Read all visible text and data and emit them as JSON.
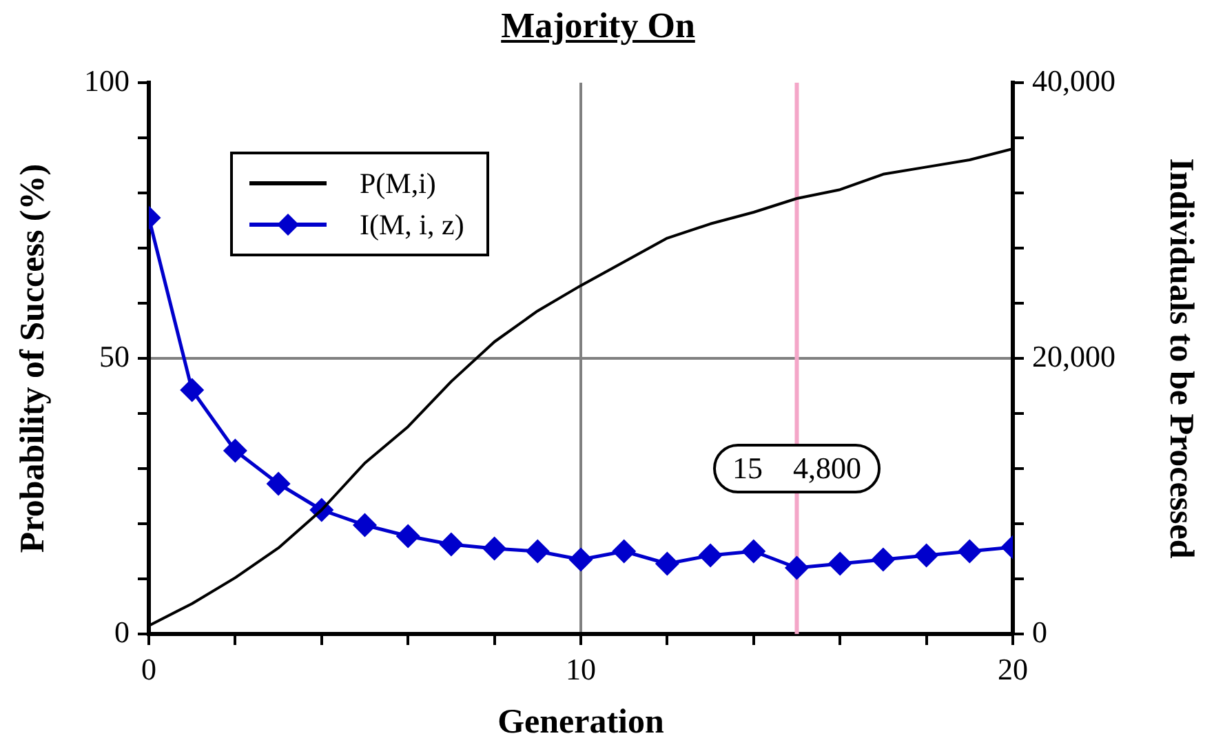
{
  "chart_data": {
    "type": "line",
    "title": "Majority On",
    "xlabel": "Generation",
    "ylabel": "Probability of Success (%)",
    "y2label": "Individuals to be Processed",
    "x": [
      0,
      1,
      2,
      3,
      4,
      5,
      6,
      7,
      8,
      9,
      10,
      11,
      12,
      13,
      14,
      15,
      16,
      17,
      18,
      19,
      20
    ],
    "series": [
      {
        "name": "P(M,i)",
        "color": "#000000",
        "marker": "none",
        "values": [
          1.5,
          5.5,
          10.2,
          15.6,
          22.5,
          31,
          37.6,
          45.8,
          53,
          58.6,
          63.2,
          67.5,
          71.8,
          74.4,
          76.5,
          79,
          80.6,
          83.4,
          84.7,
          86,
          88
        ]
      },
      {
        "name": "I(M, i, z)",
        "color": "#0000cc",
        "marker": "diamond",
        "axis": "y2",
        "values": [
          30200,
          17700,
          13300,
          10900,
          9000,
          7900,
          7100,
          6500,
          6200,
          6000,
          5400,
          6000,
          5100,
          5700,
          6000,
          4800,
          5100,
          5400,
          5700,
          6000,
          6300
        ]
      }
    ],
    "xlim": [
      0,
      20
    ],
    "xticks": [
      0,
      {
        "value": 2,
        "label": null
      },
      {
        "value": 4,
        "label": null
      },
      {
        "value": 6,
        "label": null
      },
      {
        "value": 8,
        "label": null
      },
      10,
      {
        "value": 12,
        "label": null
      },
      {
        "value": 14,
        "label": null
      },
      {
        "value": 16,
        "label": null
      },
      {
        "value": 18,
        "label": null
      },
      20
    ],
    "ylim": [
      0,
      100
    ],
    "yticks": [
      0,
      {
        "value": 10,
        "label": null
      },
      {
        "value": 20,
        "label": null
      },
      {
        "value": 30,
        "label": null
      },
      {
        "value": 40,
        "label": null
      },
      50,
      {
        "value": 60,
        "label": null
      },
      {
        "value": 70,
        "label": null
      },
      {
        "value": 80,
        "label": null
      },
      {
        "value": 90,
        "label": null
      },
      100
    ],
    "y2lim": [
      0,
      40000
    ],
    "y2ticks": [
      {
        "value": 0,
        "label": "0"
      },
      {
        "value": 4000,
        "label": null
      },
      {
        "value": 8000,
        "label": null
      },
      {
        "value": 12000,
        "label": null
      },
      {
        "value": 16000,
        "label": null
      },
      {
        "value": 20000,
        "label": "20,000"
      },
      {
        "value": 24000,
        "label": null
      },
      {
        "value": 28000,
        "label": null
      },
      {
        "value": 32000,
        "label": null
      },
      {
        "value": 36000,
        "label": null
      },
      {
        "value": 40000,
        "label": "40,000"
      }
    ],
    "ref_lines": [
      {
        "axis": "x",
        "value": 15,
        "color": "#f4a6c8"
      }
    ],
    "annotations": [
      {
        "text": "15    4,800",
        "x": 15,
        "y": 30
      }
    ],
    "grid": true,
    "legend": "top left",
    "line_style": "solid"
  }
}
